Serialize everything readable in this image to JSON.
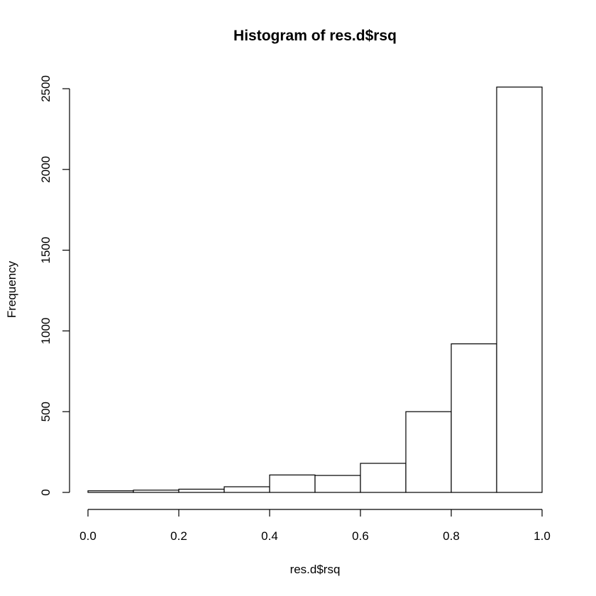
{
  "chart_data": {
    "type": "bar",
    "title": "Histogram of res.d$rsq",
    "xlabel": "res.d$rsq",
    "ylabel": "Frequency",
    "bin_edges": [
      0.0,
      0.1,
      0.2,
      0.3,
      0.4,
      0.5,
      0.6,
      0.7,
      0.8,
      0.9,
      1.0
    ],
    "values": [
      10,
      14,
      20,
      35,
      108,
      105,
      180,
      500,
      920,
      2510
    ],
    "xlim": [
      0.0,
      1.0
    ],
    "ylim": [
      0,
      2500
    ],
    "xticks": [
      "0.0",
      "0.2",
      "0.4",
      "0.6",
      "0.8",
      "1.0"
    ],
    "yticks": [
      "0",
      "500",
      "1000",
      "1500",
      "2000",
      "2500"
    ],
    "grid": false,
    "bar_fill": "#ffffff",
    "bar_stroke": "#000000"
  }
}
